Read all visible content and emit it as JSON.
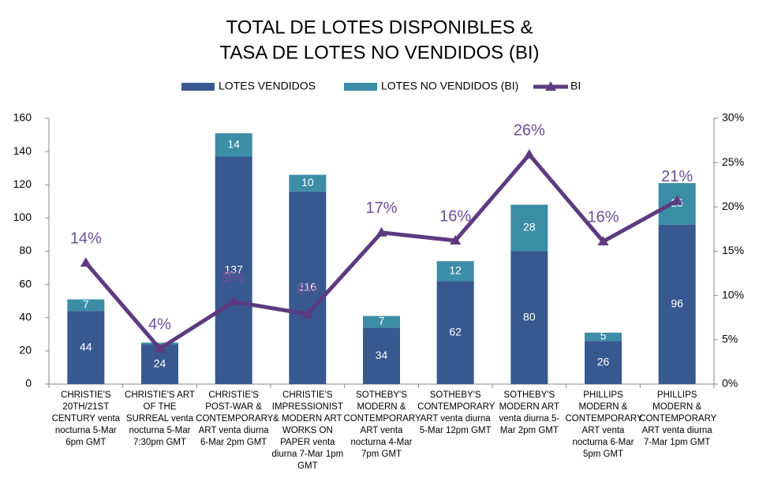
{
  "chart_data": {
    "type": "bar",
    "title": [
      "TOTAL DE LOTES DISPONIBLES &",
      "TASA DE LOTES NO VENDIDOS (BI)"
    ],
    "categories": [
      "CHRISTIE'S 20TH/21ST CENTURY venta nocturna 5-Mar 6pm GMT",
      "CHRISTIE'S ART OF THE SURREAL venta nocturna 5-Mar 7:30pm GMT",
      "CHRISTIE'S POST-WAR & CONTEMPORARY ART venta diurna 6-Mar 2pm GMT",
      "CHRISTIE'S IMPRESSIONIST & MODERN ART WORKS ON PAPER venta diurna 7-Mar 1pm GMT",
      "SOTHEBY'S MODERN & CONTEMPORARY ART venta nocturna 4-Mar 7pm GMT",
      "SOTHEBY'S CONTEMPORARY ART venta diurna 5-Mar 12pm GMT",
      "SOTHEBY'S MODERN ART venta diurna 5-Mar 2pm GMT",
      "PHILLIPS MODERN & CONTEMPORARY ART venta nocturna 6-Mar 5pm GMT",
      "PHILLIPS MODERN & CONTEMPORARY ART venta diurna 7-Mar 1pm GMT"
    ],
    "series": [
      {
        "name": "LOTES VENDIDOS",
        "color": "#38598f",
        "values": [
          44,
          24,
          137,
          116,
          34,
          62,
          80,
          26,
          96
        ]
      },
      {
        "name": "LOTES NO VENDIDOS (BI)",
        "color": "#3b8ea6",
        "values": [
          7,
          1,
          14,
          10,
          7,
          12,
          28,
          5,
          25
        ]
      },
      {
        "name": "BI",
        "type": "line",
        "axis": "y2",
        "color": "#5d3b80",
        "values": [
          13.7,
          4.0,
          9.3,
          7.9,
          17.1,
          16.2,
          25.9,
          16.1,
          20.7
        ],
        "value_labels": [
          "14%",
          "4%",
          "9%",
          "8%",
          "17%",
          "16%",
          "26%",
          "16%",
          "21%"
        ]
      }
    ],
    "ylim": [
      0,
      160
    ],
    "yticks": [
      0,
      20,
      40,
      60,
      80,
      100,
      120,
      140,
      160
    ],
    "y2lim": [
      0,
      30
    ],
    "y2ticks": [
      {
        "value": 0,
        "label": "0%"
      },
      {
        "value": 5,
        "label": "5%"
      },
      {
        "value": 10,
        "label": "10%"
      },
      {
        "value": 15,
        "label": "15%"
      },
      {
        "value": 20,
        "label": "20%"
      },
      {
        "value": 25,
        "label": "25%"
      },
      {
        "value": 30,
        "label": "30%"
      }
    ],
    "legend": "top"
  }
}
